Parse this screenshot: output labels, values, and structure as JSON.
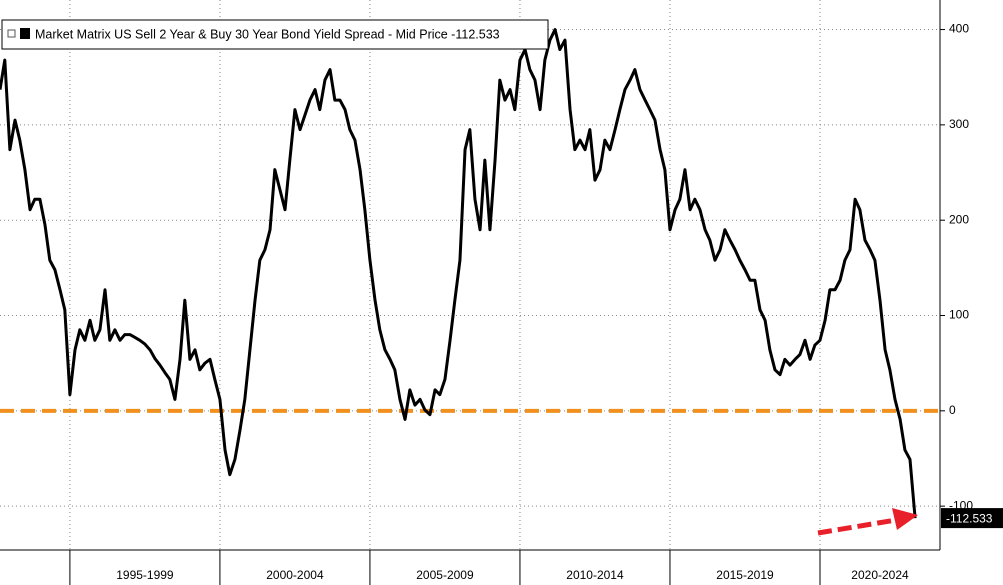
{
  "chart_data": {
    "type": "line",
    "x": [
      1992.67,
      1992.83,
      1993.0,
      1993.17,
      1993.33,
      1993.5,
      1993.67,
      1993.83,
      1994.0,
      1994.17,
      1994.33,
      1994.5,
      1994.67,
      1994.83,
      1995.0,
      1995.17,
      1995.33,
      1995.5,
      1995.67,
      1995.83,
      1996.0,
      1996.17,
      1996.33,
      1996.5,
      1996.67,
      1996.83,
      1997.0,
      1997.17,
      1997.33,
      1997.5,
      1997.67,
      1997.83,
      1998.0,
      1998.17,
      1998.33,
      1998.5,
      1998.67,
      1998.83,
      1999.0,
      1999.17,
      1999.33,
      1999.5,
      1999.67,
      1999.83,
      2000.0,
      2000.17,
      2000.33,
      2000.5,
      2000.67,
      2000.83,
      2001.0,
      2001.17,
      2001.33,
      2001.5,
      2001.67,
      2001.83,
      2002.0,
      2002.17,
      2002.33,
      2002.5,
      2002.67,
      2002.83,
      2003.0,
      2003.17,
      2003.33,
      2003.5,
      2003.67,
      2003.83,
      2004.0,
      2004.17,
      2004.33,
      2004.5,
      2004.67,
      2004.83,
      2005.0,
      2005.17,
      2005.33,
      2005.5,
      2005.67,
      2005.83,
      2006.0,
      2006.17,
      2006.33,
      2006.5,
      2006.67,
      2006.83,
      2007.0,
      2007.17,
      2007.33,
      2007.5,
      2007.67,
      2007.83,
      2008.0,
      2008.17,
      2008.33,
      2008.5,
      2008.67,
      2008.83,
      2009.0,
      2009.17,
      2009.33,
      2009.5,
      2009.67,
      2009.83,
      2010.0,
      2010.17,
      2010.33,
      2010.5,
      2010.67,
      2010.83,
      2011.0,
      2011.17,
      2011.33,
      2011.5,
      2011.67,
      2011.83,
      2012.0,
      2012.17,
      2012.33,
      2012.5,
      2012.67,
      2012.83,
      2013.0,
      2013.17,
      2013.33,
      2013.5,
      2013.67,
      2013.83,
      2014.0,
      2014.17,
      2014.33,
      2014.5,
      2014.67,
      2014.83,
      2015.0,
      2015.17,
      2015.33,
      2015.5,
      2015.67,
      2015.83,
      2016.0,
      2016.17,
      2016.33,
      2016.5,
      2016.67,
      2016.83,
      2017.0,
      2017.17,
      2017.33,
      2017.5,
      2017.67,
      2017.83,
      2018.0,
      2018.17,
      2018.33,
      2018.5,
      2018.67,
      2018.83,
      2019.0,
      2019.17,
      2019.33,
      2019.5,
      2019.67,
      2019.83,
      2020.0,
      2020.17,
      2020.33,
      2020.5,
      2020.67,
      2020.83,
      2021.0,
      2021.17,
      2021.33,
      2021.5,
      2021.67,
      2021.83,
      2022.0,
      2022.17,
      2022.33,
      2022.5,
      2022.67,
      2022.83,
      2023.0,
      2023.17
    ],
    "series": [
      {
        "name": "Market Matrix US Sell 2 Year & Buy 30 Year Bond Yield Spread - Mid Price -112.533",
        "color": "#000000",
        "values": [
          337,
          368,
          274,
          305,
          284,
          253,
          211,
          222,
          222,
          195,
          158,
          148,
          127,
          106,
          17,
          64,
          85,
          74,
          95,
          74,
          85,
          127,
          74,
          85,
          74,
          80,
          80,
          77,
          74,
          70,
          64,
          55,
          48,
          40,
          33,
          12,
          54,
          116,
          54,
          64,
          43,
          50,
          54,
          33,
          12,
          -41,
          -67,
          -51,
          -20,
          12,
          64,
          116,
          158,
          169,
          190,
          253,
          232,
          211,
          263,
          316,
          295,
          310,
          326,
          337,
          316,
          347,
          358,
          326,
          326,
          316,
          295,
          284,
          253,
          211,
          158,
          116,
          85,
          64,
          54,
          43,
          12,
          -9,
          22,
          6,
          12,
          1,
          -4,
          22,
          17,
          33,
          74,
          116,
          158,
          274,
          295,
          222,
          190,
          263,
          190,
          263,
          347,
          326,
          337,
          316,
          368,
          379,
          358,
          347,
          316,
          368,
          389,
          400,
          379,
          389,
          316,
          274,
          284,
          274,
          295,
          242,
          253,
          284,
          274,
          295,
          316,
          337,
          347,
          358,
          337,
          326,
          316,
          305,
          274,
          253,
          190,
          211,
          222,
          253,
          211,
          222,
          211,
          190,
          179,
          158,
          169,
          190,
          179,
          169,
          158,
          148,
          137,
          137,
          106,
          95,
          64,
          43,
          38,
          54,
          48,
          54,
          59,
          74,
          54,
          69,
          74,
          95,
          127,
          127,
          137,
          158,
          169,
          222,
          211,
          179,
          169,
          158,
          116,
          64,
          43,
          12,
          -9,
          -41,
          -51,
          -112.533
        ]
      }
    ],
    "xlim": [
      1992.67,
      2024
    ],
    "xticks": [
      {
        "value": 1995,
        "label": "1995-1999"
      },
      {
        "value": 2000,
        "label": "2000-2004"
      },
      {
        "value": 2005,
        "label": "2005-2009"
      },
      {
        "value": 2010,
        "label": "2010-2014"
      },
      {
        "value": 2015,
        "label": "2015-2019"
      },
      {
        "value": 2020,
        "label": "2020-2024"
      }
    ],
    "ylim": [
      -146,
      431
    ],
    "yticks": [
      400,
      300,
      200,
      100,
      0,
      -100
    ],
    "grid": true,
    "reference_line": {
      "value": 0,
      "color": "#f0901e"
    },
    "legend": "top-left"
  }
}
